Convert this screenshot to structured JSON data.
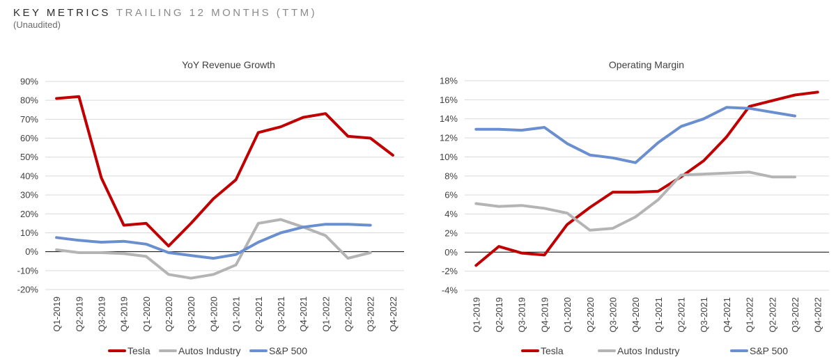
{
  "header": {
    "title_bold": "KEY METRICS",
    "title_light": "TRAILING 12 MONTHS (TTM)",
    "subtitle": "(Unaudited)"
  },
  "colors": {
    "tesla": "#c00000",
    "autos": "#b4b4b4",
    "sp500": "#6a8fd0",
    "grid": "#d9d9d9",
    "zero": "#000000",
    "text": "#404040"
  },
  "chart_data": [
    {
      "type": "line",
      "title": "YoY Revenue Growth",
      "categories": [
        "Q1-2019",
        "Q2-2019",
        "Q3-2019",
        "Q4-2019",
        "Q1-2020",
        "Q2-2020",
        "Q3-2020",
        "Q4-2020",
        "Q1-2021",
        "Q2-2021",
        "Q3-2021",
        "Q4-2021",
        "Q1-2022",
        "Q2-2022",
        "Q3-2022",
        "Q4-2022"
      ],
      "ylim": [
        -20,
        90
      ],
      "yticks": [
        -20,
        -10,
        0,
        10,
        20,
        30,
        40,
        50,
        60,
        70,
        80,
        90
      ],
      "ytick_labels": [
        "-20%",
        "-10%",
        "0%",
        "10%",
        "20%",
        "30%",
        "40%",
        "50%",
        "60%",
        "70%",
        "80%",
        "90%"
      ],
      "grid": true,
      "legend_position": "bottom",
      "series": [
        {
          "name": "Tesla",
          "color_key": "tesla",
          "values": [
            81,
            82,
            39,
            14,
            15,
            3,
            15,
            28,
            38,
            63,
            66,
            71,
            73,
            61,
            60,
            51
          ]
        },
        {
          "name": "Autos Industry",
          "color_key": "autos",
          "values": [
            1,
            -0.5,
            -0.5,
            -1,
            -2.5,
            -12,
            -14,
            -12,
            -7,
            15,
            17,
            13,
            8.5,
            -3.5,
            -0.5,
            null
          ]
        },
        {
          "name": "S&P 500",
          "color_key": "sp500",
          "values": [
            7.5,
            6,
            5,
            5.5,
            4,
            -0.5,
            -2,
            -3.5,
            -1.5,
            5,
            10,
            13,
            14.5,
            14.5,
            14,
            null
          ]
        }
      ]
    },
    {
      "type": "line",
      "title": "Operating Margin",
      "categories": [
        "Q1-2019",
        "Q2-2019",
        "Q3-2019",
        "Q4-2019",
        "Q1-2020",
        "Q2-2020",
        "Q3-2020",
        "Q4-2020",
        "Q1-2021",
        "Q2-2021",
        "Q3-2021",
        "Q4-2021",
        "Q1-2022",
        "Q2-2022",
        "Q3-2022",
        "Q4-2022"
      ],
      "ylim": [
        -4,
        18
      ],
      "yticks": [
        -4,
        -2,
        0,
        2,
        4,
        6,
        8,
        10,
        12,
        14,
        16,
        18
      ],
      "ytick_labels": [
        "-4%",
        "-2%",
        "0%",
        "2%",
        "4%",
        "6%",
        "8%",
        "10%",
        "12%",
        "14%",
        "16%",
        "18%"
      ],
      "grid": true,
      "legend_position": "bottom",
      "series": [
        {
          "name": "Tesla",
          "color_key": "tesla",
          "values": [
            -1.4,
            0.6,
            -0.1,
            -0.3,
            2.9,
            4.7,
            6.3,
            6.3,
            6.4,
            7.9,
            9.6,
            12.1,
            15.3,
            15.9,
            16.5,
            16.8
          ]
        },
        {
          "name": "Autos Industry",
          "color_key": "autos",
          "values": [
            5.1,
            4.8,
            4.9,
            4.6,
            4.1,
            2.3,
            2.5,
            3.7,
            5.5,
            8.1,
            8.2,
            8.3,
            8.4,
            7.9,
            7.9,
            null
          ]
        },
        {
          "name": "S&P 500",
          "color_key": "sp500",
          "values": [
            12.9,
            12.9,
            12.8,
            13.1,
            11.4,
            10.2,
            9.9,
            9.4,
            11.5,
            13.2,
            14.0,
            15.2,
            15.1,
            14.7,
            14.3,
            null
          ]
        }
      ]
    }
  ]
}
